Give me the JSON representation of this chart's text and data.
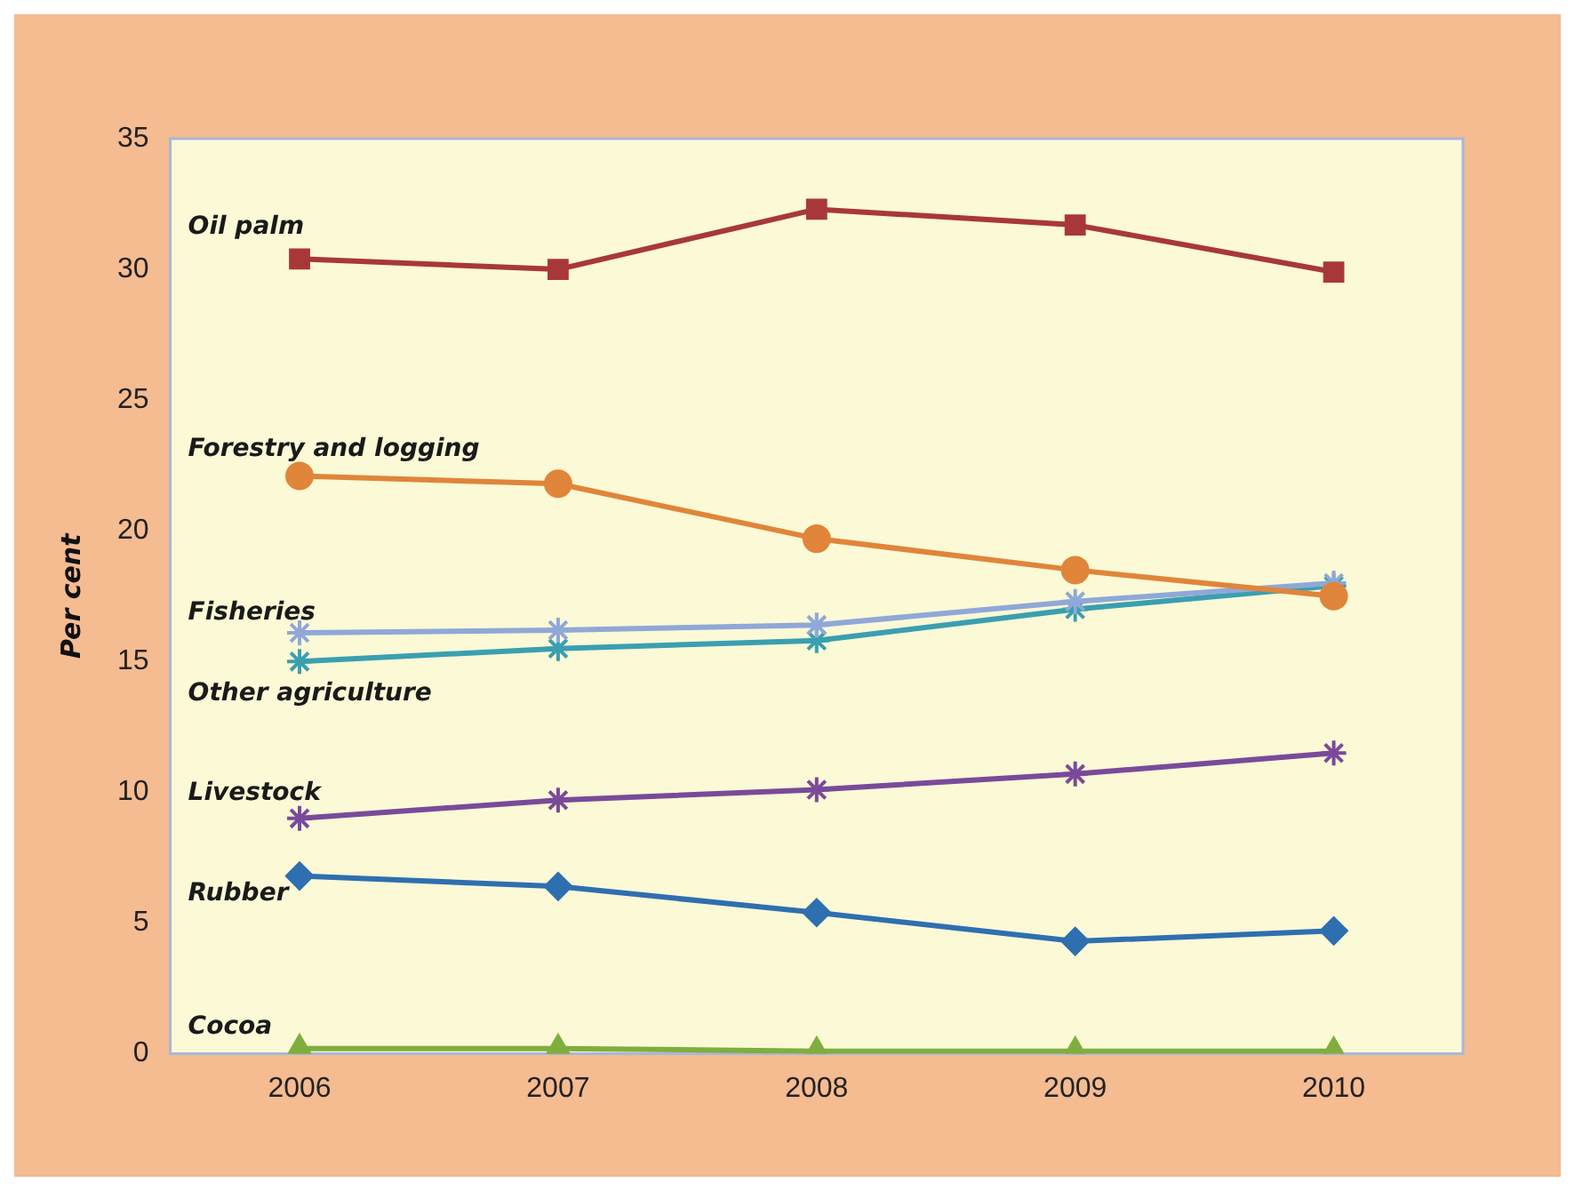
{
  "chart_data": {
    "type": "line",
    "ylabel": "Per cent",
    "categories": [
      "2006",
      "2007",
      "2008",
      "2009",
      "2010"
    ],
    "ylim": [
      0,
      35
    ],
    "yticks": [
      0,
      5,
      10,
      15,
      20,
      25,
      30,
      35
    ],
    "grid": false,
    "legend": false,
    "series": [
      {
        "name": "Oil palm",
        "color": "#a83838",
        "marker": "square",
        "values": [
          30.4,
          30.0,
          32.3,
          31.7,
          29.9
        ]
      },
      {
        "name": "Forestry and logging",
        "color": "#e0853a",
        "marker": "circle",
        "values": [
          22.1,
          21.8,
          19.7,
          18.5,
          17.5
        ]
      },
      {
        "name": "Fisheries",
        "color": "#8fa8d8",
        "marker": "cross",
        "values": [
          16.1,
          16.2,
          16.4,
          17.3,
          18.0
        ]
      },
      {
        "name": "Other agriculture",
        "color": "#3a9fb0",
        "marker": "cross",
        "values": [
          15.0,
          15.5,
          15.8,
          17.0,
          17.9
        ]
      },
      {
        "name": "Livestock",
        "color": "#7a4a9a",
        "marker": "cross",
        "values": [
          9.0,
          9.7,
          10.1,
          10.7,
          11.5
        ]
      },
      {
        "name": "Rubber",
        "color": "#2e6fb0",
        "marker": "diamond",
        "values": [
          6.8,
          6.4,
          5.4,
          4.3,
          4.7
        ]
      },
      {
        "name": "Cocoa",
        "color": "#7fae3e",
        "marker": "triangle",
        "values": [
          0.2,
          0.2,
          0.1,
          0.1,
          0.1
        ]
      }
    ]
  }
}
